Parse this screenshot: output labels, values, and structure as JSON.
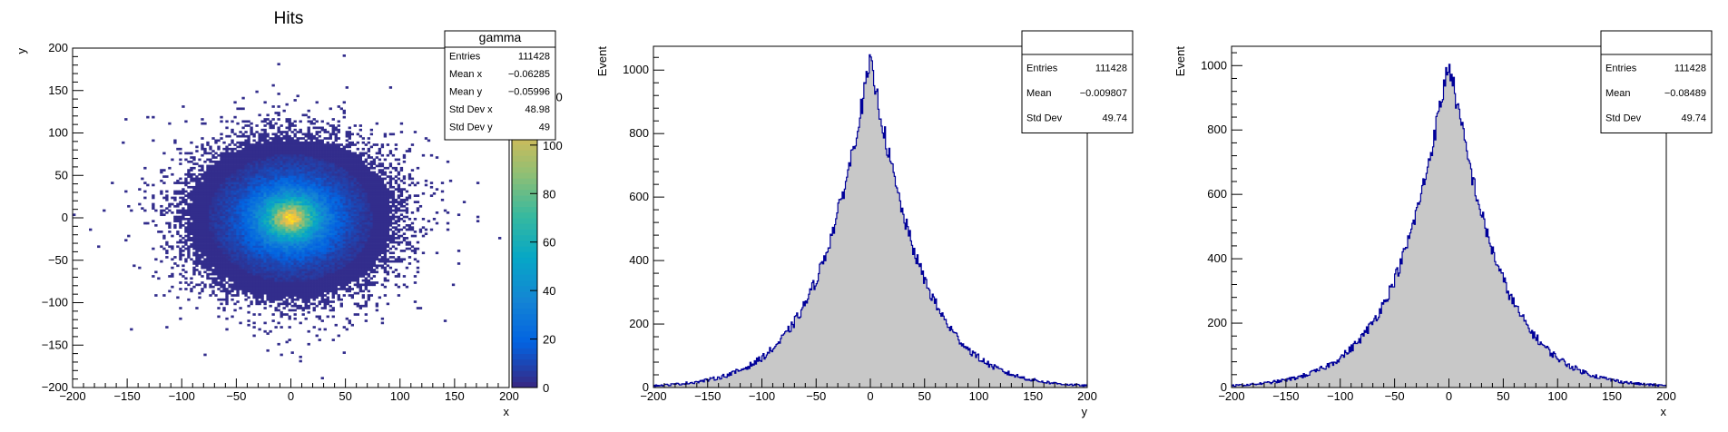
{
  "colors": {
    "frame": "#000000",
    "hist_fill": "#c8c8c8",
    "hist_line": "#000099",
    "palette": [
      "#352a87",
      "#0363e1",
      "#1485d4",
      "#06a7c6",
      "#38b99e",
      "#92bf73",
      "#d9ba56",
      "#fcce2e",
      "#f9fb0e"
    ]
  },
  "chart_data": [
    {
      "type": "heatmap",
      "title": "Hits",
      "xlabel": "x",
      "ylabel": "y",
      "xlim": [
        -200,
        200
      ],
      "ylim": [
        -200,
        200
      ],
      "zlim": [
        0,
        140
      ],
      "x_ticks": [
        -200,
        -150,
        -100,
        -50,
        0,
        50,
        100,
        150,
        200
      ],
      "y_ticks": [
        -200,
        -150,
        -100,
        -50,
        0,
        50,
        100,
        150,
        200
      ],
      "z_ticks": [
        0,
        20,
        40,
        60,
        80,
        100,
        120
      ],
      "distribution": {
        "mean_x": -0.06285,
        "mean_y": -0.05996,
        "std_x": 48.98,
        "std_y": 49,
        "peak": 135
      },
      "stats": {
        "title": "gamma",
        "rows": [
          {
            "label": "Entries",
            "value": "111428"
          },
          {
            "label": "Mean x",
            "value": "−0.06285"
          },
          {
            "label": "Mean y",
            "value": "−0.05996"
          },
          {
            "label": "Std Dev x",
            "value": "48.98"
          },
          {
            "label": "Std Dev y",
            "value": "49"
          }
        ]
      },
      "grid": false
    },
    {
      "type": "area",
      "title": "",
      "xlabel": "y",
      "ylabel": "Event",
      "xlim": [
        -200,
        200
      ],
      "ylim": [
        0,
        1075
      ],
      "x_ticks": [
        -200,
        -150,
        -100,
        -50,
        0,
        50,
        100,
        150,
        200
      ],
      "y_ticks": [
        0,
        200,
        400,
        600,
        800,
        1000
      ],
      "distribution": {
        "peak": 1020,
        "mean": -0.009807,
        "std": 49.74,
        "bin_width": 1
      },
      "stats": {
        "title": "",
        "rows": [
          {
            "label": "Entries",
            "value": "111428"
          },
          {
            "label": "Mean",
            "value": "−0.009807"
          },
          {
            "label": "Std Dev",
            "value": "49.74"
          }
        ]
      },
      "grid": false
    },
    {
      "type": "area",
      "title": "",
      "xlabel": "x",
      "ylabel": "Event",
      "xlim": [
        -200,
        200
      ],
      "ylim": [
        0,
        1060
      ],
      "x_ticks": [
        -200,
        -150,
        -100,
        -50,
        0,
        50,
        100,
        150,
        200
      ],
      "y_ticks": [
        0,
        200,
        400,
        600,
        800,
        1000
      ],
      "distribution": {
        "peak": 1005,
        "mean": -0.08489,
        "std": 49.74,
        "bin_width": 1
      },
      "stats": {
        "title": "",
        "rows": [
          {
            "label": "Entries",
            "value": "111428"
          },
          {
            "label": "Mean",
            "value": "−0.08489"
          },
          {
            "label": "Std Dev",
            "value": "49.74"
          }
        ]
      },
      "grid": false
    }
  ]
}
